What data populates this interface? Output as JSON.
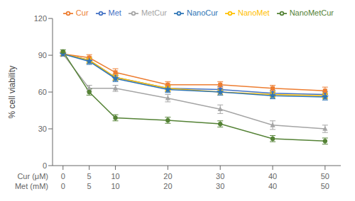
{
  "chart_data": {
    "type": "line",
    "x": [
      0,
      5,
      10,
      20,
      30,
      40,
      50
    ],
    "xlim": [
      -2,
      53
    ],
    "xticks": [
      0,
      5,
      10,
      20,
      30,
      40,
      50
    ],
    "xlabel_rows": [
      "Cur (μM)",
      "Met (mM)"
    ],
    "ylabel": "% cell viability",
    "ylim": [
      0,
      120
    ],
    "yticks": [
      0,
      30,
      60,
      90,
      120
    ],
    "grid": false,
    "legend": "upper right",
    "series": [
      {
        "name": "Met",
        "color": "#4472C4",
        "marker": "circle",
        "values": [
          91,
          86,
          72,
          63,
          62,
          59,
          58
        ],
        "yerr": [
          1.5,
          2.5,
          2.5,
          2.5,
          2.5,
          2.5,
          2.5
        ]
      },
      {
        "name": "Cur",
        "color": "#ED7D31",
        "marker": "square",
        "values": [
          91,
          88,
          76,
          66,
          66,
          63,
          61
        ],
        "yerr": [
          1.5,
          2.5,
          3.0,
          2.5,
          2.5,
          2.5,
          3.0
        ]
      },
      {
        "name": "MetCur",
        "color": "#A5A5A5",
        "marker": "triangle",
        "values": [
          91,
          63,
          63,
          55,
          46,
          33,
          30
        ],
        "yerr": [
          1.5,
          2.5,
          2.5,
          3.0,
          3.5,
          3.5,
          3.0
        ]
      },
      {
        "name": "NanoMet",
        "color": "#FFC000",
        "marker": "cross",
        "values": [
          91,
          86,
          72,
          63,
          60,
          58,
          57
        ],
        "yerr": [
          1.5,
          2.5,
          2.5,
          2.5,
          2.5,
          2.5,
          2.5
        ]
      },
      {
        "name": "NanoCur",
        "color": "#2E75B6",
        "marker": "star",
        "values": [
          91,
          85,
          71,
          62,
          60,
          57,
          56
        ],
        "yerr": [
          1.5,
          2.5,
          2.5,
          2.5,
          2.5,
          2.5,
          2.5
        ]
      },
      {
        "name": "NanoMetCur",
        "color": "#548235",
        "marker": "circle",
        "values": [
          93,
          60,
          39,
          37,
          34,
          22,
          20
        ],
        "yerr": [
          1.5,
          2.5,
          2.5,
          2.5,
          2.5,
          2.5,
          2.5
        ]
      }
    ]
  }
}
